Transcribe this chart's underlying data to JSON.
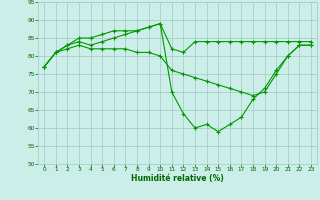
{
  "background_color": "#cceee8",
  "grid_color": "#aacccc",
  "line_color": "#009900",
  "xlabel": "Humidité relative (%)",
  "xlabel_color": "#006600",
  "xlim": [
    -0.5,
    23.5
  ],
  "ylim": [
    50,
    95
  ],
  "yticks": [
    50,
    55,
    60,
    65,
    70,
    75,
    80,
    85,
    90,
    95
  ],
  "xticks": [
    0,
    1,
    2,
    3,
    4,
    5,
    6,
    7,
    8,
    9,
    10,
    11,
    12,
    13,
    14,
    15,
    16,
    17,
    18,
    19,
    20,
    21,
    22,
    23
  ],
  "line1_x": [
    0,
    1,
    2,
    3,
    4,
    5,
    6,
    7,
    8,
    9,
    10,
    11,
    12,
    13,
    14,
    15,
    16,
    17,
    18,
    19,
    20,
    21,
    22,
    23
  ],
  "line1_y": [
    77,
    81,
    83,
    85,
    85,
    86,
    87,
    87,
    87,
    88,
    89,
    82,
    81,
    84,
    84,
    84,
    84,
    84,
    84,
    84,
    84,
    84,
    84,
    84
  ],
  "line2_x": [
    0,
    1,
    2,
    3,
    4,
    5,
    6,
    7,
    8,
    9,
    10,
    11,
    12,
    13,
    14,
    15,
    16,
    17,
    18,
    19,
    20,
    21,
    22,
    23
  ],
  "line2_y": [
    77,
    81,
    83,
    84,
    83,
    84,
    85,
    86,
    87,
    88,
    89,
    70,
    64,
    60,
    61,
    59,
    61,
    63,
    68,
    71,
    76,
    80,
    83,
    83
  ],
  "line3_x": [
    0,
    1,
    2,
    3,
    4,
    5,
    6,
    7,
    8,
    9,
    10,
    11,
    12,
    13,
    14,
    15,
    16,
    17,
    18,
    19,
    20,
    21,
    22,
    23
  ],
  "line3_y": [
    77,
    81,
    82,
    83,
    82,
    82,
    82,
    82,
    81,
    81,
    80,
    76,
    75,
    74,
    73,
    72,
    71,
    70,
    69,
    70,
    75,
    80,
    83,
    83
  ]
}
